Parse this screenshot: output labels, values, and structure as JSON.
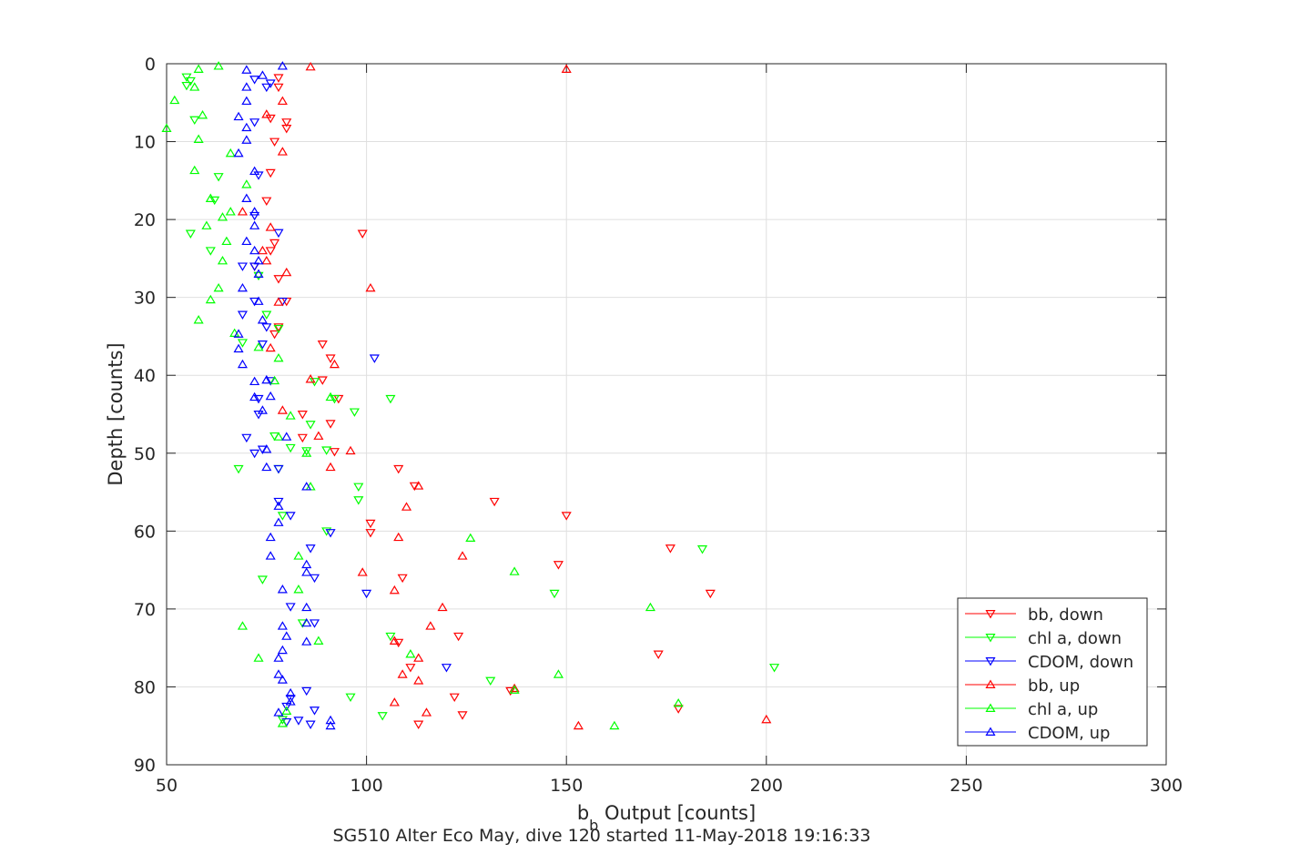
{
  "chart_data": {
    "type": "scatter",
    "title": "SG510 Alter Eco May, dive 120 started 11-May-2018 19:16:33",
    "xlabel_main": "b",
    "xlabel_sub": "b",
    "xlabel_rest": " Output [counts]",
    "ylabel": "Depth [counts]",
    "xlim": [
      50,
      300
    ],
    "ylim": [
      0,
      90
    ],
    "y_reversed": true,
    "grid": true,
    "legend_position": "bottom-right",
    "x_ticks": [
      "50",
      "100",
      "150",
      "200",
      "250",
      "300"
    ],
    "y_ticks": [
      "0",
      "10",
      "20",
      "30",
      "40",
      "50",
      "60",
      "70",
      "80",
      "90"
    ],
    "series": [
      {
        "name": "bb, down",
        "color": "#ff0000",
        "marker": "triangle-down",
        "points": [
          [
            78,
            1.8
          ],
          [
            78,
            3
          ],
          [
            76,
            7
          ],
          [
            80,
            7.5
          ],
          [
            80,
            8.3
          ],
          [
            77,
            10
          ],
          [
            76,
            14
          ],
          [
            75,
            17.6
          ],
          [
            99,
            21.8
          ],
          [
            77,
            23
          ],
          [
            76,
            24
          ],
          [
            72,
            26
          ],
          [
            78,
            27.6
          ],
          [
            80,
            30.5
          ],
          [
            78,
            33.8
          ],
          [
            77,
            34.7
          ],
          [
            89,
            36
          ],
          [
            91,
            37.8
          ],
          [
            89,
            40.6
          ],
          [
            93,
            43
          ],
          [
            84,
            45
          ],
          [
            84,
            48
          ],
          [
            91,
            46.2
          ],
          [
            92,
            49.8
          ],
          [
            108,
            52
          ],
          [
            112,
            54.2
          ],
          [
            132,
            56.2
          ],
          [
            150,
            58
          ],
          [
            101,
            59
          ],
          [
            101,
            60.2
          ],
          [
            176,
            62.2
          ],
          [
            148,
            64.3
          ],
          [
            109,
            66
          ],
          [
            186,
            68
          ],
          [
            123,
            73.5
          ],
          [
            108,
            74.3
          ],
          [
            111,
            77.5
          ],
          [
            173,
            75.8
          ],
          [
            122,
            81.3
          ],
          [
            124,
            83.6
          ],
          [
            136,
            80.5
          ],
          [
            178,
            82.8
          ],
          [
            113,
            84.8
          ]
        ]
      },
      {
        "name": "chl a, down",
        "color": "#00ff00",
        "marker": "triangle-down",
        "points": [
          [
            55,
            1.7
          ],
          [
            56,
            2.2
          ],
          [
            55,
            2.8
          ],
          [
            57,
            7.2
          ],
          [
            63,
            14.5
          ],
          [
            62,
            17.5
          ],
          [
            73,
            27.2
          ],
          [
            75,
            32.2
          ],
          [
            56,
            21.8
          ],
          [
            61,
            24
          ],
          [
            69,
            35.8
          ],
          [
            78,
            34
          ],
          [
            85,
            49.7
          ],
          [
            98,
            54.3
          ],
          [
            98,
            56
          ],
          [
            90,
            60
          ],
          [
            106,
            43
          ],
          [
            97,
            44.7
          ],
          [
            68,
            52
          ],
          [
            87,
            40.8
          ],
          [
            92,
            43
          ],
          [
            86,
            46.3
          ],
          [
            77,
            47.8
          ],
          [
            78,
            52
          ],
          [
            79,
            58
          ],
          [
            184,
            62.3
          ],
          [
            147,
            68
          ],
          [
            202,
            77.5
          ],
          [
            131,
            79.2
          ],
          [
            96,
            81.3
          ],
          [
            104,
            83.7
          ],
          [
            79,
            84.2
          ],
          [
            106,
            73.5
          ],
          [
            84,
            71.8
          ],
          [
            74,
            66.2
          ],
          [
            81,
            49.3
          ],
          [
            90,
            49.6
          ]
        ]
      },
      {
        "name": "CDOM, down",
        "color": "#0000ff",
        "marker": "triangle-down",
        "points": [
          [
            72,
            2
          ],
          [
            76,
            2.5
          ],
          [
            75,
            3
          ],
          [
            72,
            7.5
          ],
          [
            73,
            14.3
          ],
          [
            72,
            19.5
          ],
          [
            78,
            21.7
          ],
          [
            72,
            26
          ],
          [
            69,
            26
          ],
          [
            72,
            30.5
          ],
          [
            79,
            30.5
          ],
          [
            69,
            32.2
          ],
          [
            75,
            33.8
          ],
          [
            74,
            36
          ],
          [
            102,
            37.8
          ],
          [
            76,
            40.7
          ],
          [
            73,
            43
          ],
          [
            73,
            45
          ],
          [
            70,
            48
          ],
          [
            72,
            50
          ],
          [
            74,
            49.5
          ],
          [
            78,
            52
          ],
          [
            78,
            56.2
          ],
          [
            81,
            58
          ],
          [
            91,
            60.2
          ],
          [
            86,
            62.2
          ],
          [
            87,
            66
          ],
          [
            100,
            68
          ],
          [
            81,
            69.7
          ],
          [
            87,
            71.8
          ],
          [
            120,
            77.5
          ],
          [
            85,
            80.5
          ],
          [
            81,
            81.5
          ],
          [
            80,
            82.5
          ],
          [
            87,
            83
          ],
          [
            83,
            84.3
          ],
          [
            86,
            84.8
          ],
          [
            80,
            84.5
          ]
        ]
      },
      {
        "name": "bb, up",
        "color": "#ff0000",
        "marker": "triangle-up",
        "points": [
          [
            86,
            0.4
          ],
          [
            150,
            0.7
          ],
          [
            79,
            4.8
          ],
          [
            75,
            6.5
          ],
          [
            79,
            11.3
          ],
          [
            69,
            19
          ],
          [
            76,
            21
          ],
          [
            74,
            24
          ],
          [
            75,
            25.3
          ],
          [
            80,
            26.8
          ],
          [
            101,
            28.8
          ],
          [
            78,
            30.6
          ],
          [
            76,
            36.5
          ],
          [
            92,
            38.6
          ],
          [
            86,
            40.5
          ],
          [
            79,
            44.5
          ],
          [
            88,
            47.8
          ],
          [
            96,
            49.7
          ],
          [
            91,
            51.8
          ],
          [
            113,
            54.2
          ],
          [
            110,
            56.9
          ],
          [
            108,
            60.8
          ],
          [
            124,
            63.2
          ],
          [
            99,
            65.3
          ],
          [
            107,
            67.6
          ],
          [
            119,
            69.8
          ],
          [
            116,
            72.2
          ],
          [
            107,
            74.1
          ],
          [
            113,
            76.3
          ],
          [
            109,
            78.4
          ],
          [
            113,
            79.2
          ],
          [
            137,
            80.2
          ],
          [
            107,
            82
          ],
          [
            115,
            83.3
          ],
          [
            153,
            85
          ],
          [
            200,
            84.2
          ]
        ]
      },
      {
        "name": "chl a, up",
        "color": "#00ff00",
        "marker": "triangle-up",
        "points": [
          [
            63,
            0.3
          ],
          [
            58,
            0.7
          ],
          [
            57,
            3
          ],
          [
            52,
            4.7
          ],
          [
            59,
            6.6
          ],
          [
            50,
            8.3
          ],
          [
            58,
            9.7
          ],
          [
            66,
            11.5
          ],
          [
            57,
            13.7
          ],
          [
            70,
            15.5
          ],
          [
            61,
            17.3
          ],
          [
            66,
            19
          ],
          [
            64,
            19.7
          ],
          [
            60,
            20.8
          ],
          [
            65,
            22.8
          ],
          [
            64,
            25.3
          ],
          [
            63,
            28.8
          ],
          [
            61,
            30.3
          ],
          [
            58,
            32.9
          ],
          [
            67,
            34.6
          ],
          [
            73,
            36.4
          ],
          [
            78,
            37.8
          ],
          [
            77,
            40.7
          ],
          [
            91,
            42.8
          ],
          [
            81,
            45.2
          ],
          [
            78,
            47.9
          ],
          [
            85,
            50
          ],
          [
            86,
            54.3
          ],
          [
            126,
            60.9
          ],
          [
            83,
            63.2
          ],
          [
            137,
            65.2
          ],
          [
            83,
            67.5
          ],
          [
            171,
            69.8
          ],
          [
            69,
            72.2
          ],
          [
            88,
            74.1
          ],
          [
            111,
            75.8
          ],
          [
            73,
            76.3
          ],
          [
            148,
            78.4
          ],
          [
            137,
            80.4
          ],
          [
            178,
            82.1
          ],
          [
            162,
            85
          ],
          [
            79,
            84.7
          ],
          [
            80,
            83.1
          ]
        ]
      },
      {
        "name": "CDOM, up",
        "color": "#0000ff",
        "marker": "triangle-up",
        "points": [
          [
            79,
            0.3
          ],
          [
            70,
            0.8
          ],
          [
            74,
            1.5
          ],
          [
            70,
            3
          ],
          [
            70,
            4.8
          ],
          [
            68,
            6.8
          ],
          [
            70,
            8.2
          ],
          [
            70,
            9.8
          ],
          [
            68,
            11.5
          ],
          [
            72,
            13.8
          ],
          [
            70,
            17.3
          ],
          [
            72,
            19
          ],
          [
            72,
            20.8
          ],
          [
            70,
            22.8
          ],
          [
            72,
            24
          ],
          [
            73,
            25.3
          ],
          [
            73,
            27
          ],
          [
            69,
            28.8
          ],
          [
            73,
            30.5
          ],
          [
            74,
            32.9
          ],
          [
            68,
            34.7
          ],
          [
            68,
            36.6
          ],
          [
            69,
            38.6
          ],
          [
            72,
            40.8
          ],
          [
            75,
            40.6
          ],
          [
            72,
            42.8
          ],
          [
            76,
            42.7
          ],
          [
            74,
            44.5
          ],
          [
            80,
            47.9
          ],
          [
            75,
            49.5
          ],
          [
            75,
            51.8
          ],
          [
            85,
            54.3
          ],
          [
            78,
            56.8
          ],
          [
            78,
            58.9
          ],
          [
            76,
            60.8
          ],
          [
            76,
            63.2
          ],
          [
            85,
            64.3
          ],
          [
            85,
            65.3
          ],
          [
            79,
            67.5
          ],
          [
            85,
            69.8
          ],
          [
            85,
            71.8
          ],
          [
            79,
            72.2
          ],
          [
            80,
            73.5
          ],
          [
            85,
            74.2
          ],
          [
            79,
            75.3
          ],
          [
            78,
            76.3
          ],
          [
            78,
            78.4
          ],
          [
            79,
            79.1
          ],
          [
            81,
            80.8
          ],
          [
            81,
            81.9
          ],
          [
            78,
            83.3
          ],
          [
            91,
            84.3
          ],
          [
            91,
            85
          ]
        ]
      }
    ]
  }
}
